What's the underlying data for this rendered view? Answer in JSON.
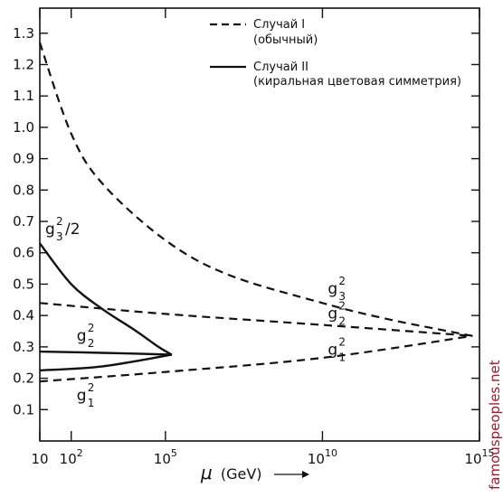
{
  "chart_data": {
    "type": "line",
    "xlabel_symbol": "μ",
    "xlabel_text": "(GeV)",
    "xscale": "log",
    "xlim": [
      10,
      1000000000000000.0
    ],
    "ylim": [
      0,
      1.38
    ],
    "y_ticks": [
      "0.1",
      "0.2",
      "0.3",
      "0.4",
      "0.5",
      "0.6",
      "0.7",
      "0.8",
      "0.9",
      "1.0",
      "1.1",
      "1.2",
      "1.3"
    ],
    "x_ticks": [
      {
        "value": 10,
        "base": "10",
        "exp": ""
      },
      {
        "value": 100,
        "base": "10",
        "exp": "2"
      },
      {
        "value": 100000,
        "base": "10",
        "exp": "5"
      },
      {
        "value": 10000000000.0,
        "base": "10",
        "exp": "10"
      },
      {
        "value": 1000000000000000.0,
        "base": "10",
        "exp": "15"
      }
    ],
    "legend": [
      {
        "style": "dashed",
        "line1": "Случай I",
        "line2": "(обычный)"
      },
      {
        "style": "solid",
        "line1": "Случай II",
        "line2": "(киральная цветовая симметрия)"
      }
    ],
    "series": [
      {
        "name": "g3^2 (case I)",
        "style": "dashed",
        "x": [
          10,
          100,
          1000,
          100000,
          10000000.0,
          10000000000.0,
          1000000000000.0,
          100000000000000.0,
          600000000000000.0
        ],
        "y": [
          1.27,
          0.98,
          0.82,
          0.64,
          0.53,
          0.44,
          0.39,
          0.35,
          0.335
        ]
      },
      {
        "name": "g2^2 (case I)",
        "style": "dashed",
        "x": [
          10,
          100000,
          10000000000.0,
          600000000000000.0
        ],
        "y": [
          0.44,
          0.405,
          0.37,
          0.335
        ]
      },
      {
        "name": "g1^2 (case I)",
        "style": "dashed",
        "x": [
          10,
          100000,
          10000000000.0,
          600000000000000.0
        ],
        "y": [
          0.19,
          0.22,
          0.265,
          0.335
        ]
      },
      {
        "name": "g3^2/2 (case II)",
        "style": "solid",
        "x": [
          10,
          100,
          1000,
          10000,
          60000,
          160000
        ],
        "y": [
          0.63,
          0.5,
          0.42,
          0.355,
          0.3,
          0.275
        ]
      },
      {
        "name": "g2^2 (case II)",
        "style": "solid",
        "x": [
          10,
          1000,
          160000
        ],
        "y": [
          0.285,
          0.281,
          0.275
        ]
      },
      {
        "name": "g1^2 (case II)",
        "style": "solid",
        "x": [
          10,
          1000,
          160000
        ],
        "y": [
          0.225,
          0.238,
          0.275
        ]
      }
    ],
    "curve_labels": [
      {
        "base": "g",
        "sup": "2",
        "sub": "3",
        "suffix": "/2",
        "x": 10,
        "y": 0.66
      },
      {
        "base": "g",
        "sup": "2",
        "sub": "2",
        "suffix": "",
        "x": 100,
        "y": 0.32
      },
      {
        "base": "g",
        "sup": "2",
        "sub": "1",
        "suffix": "",
        "x": 100,
        "y": 0.13
      },
      {
        "base": "g",
        "sup": "2",
        "sub": "3",
        "suffix": "",
        "x": 10000000000.0,
        "y": 0.47
      },
      {
        "base": "g",
        "sup": "2",
        "sub": "2",
        "suffix": "",
        "x": 10000000000.0,
        "y": 0.39
      },
      {
        "base": "g",
        "sup": "2",
        "sub": "1",
        "suffix": "",
        "x": 10000000000.0,
        "y": 0.275
      }
    ]
  },
  "watermark": "famouspeoples.net"
}
